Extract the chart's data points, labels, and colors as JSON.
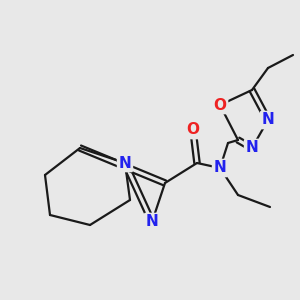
{
  "bg_color": "#e8e8e8",
  "bond_color": "#1a1a1a",
  "N_color": "#2222ee",
  "O_color": "#ee2222",
  "bond_width": 1.6,
  "dbo": 0.07,
  "font_size_atom": 11,
  "fig_size": [
    3.0,
    3.0
  ],
  "dpi": 100,
  "xlim": [
    0,
    10
  ],
  "ylim": [
    0,
    10
  ]
}
